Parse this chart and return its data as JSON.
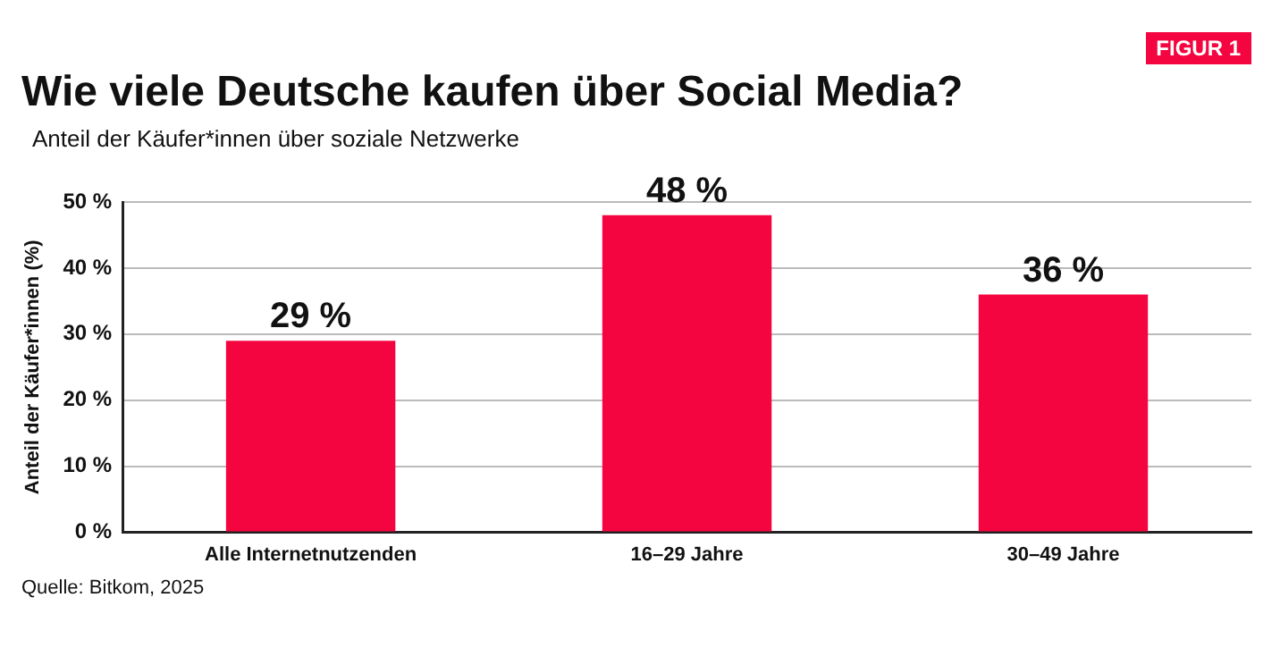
{
  "chart_data": {
    "type": "bar",
    "title": "Wie viele Deutsche kaufen über Social Media?",
    "subtitle": "Anteil der Käufer*innen über soziale Netzwerke",
    "ylabel": "Anteil der Käufer*innen (%)",
    "categories": [
      "Alle Internetnutzenden",
      "16–29 Jahre",
      "30–49 Jahre"
    ],
    "values": [
      29,
      48,
      36
    ],
    "value_labels": [
      "29 %",
      "48 %",
      "36 %"
    ],
    "color": "#f5053f",
    "ylim": [
      0,
      50
    ],
    "yticks": [
      {
        "value": 0,
        "label": "0 %"
      },
      {
        "value": 10,
        "label": "10 %"
      },
      {
        "value": 20,
        "label": "20 %"
      },
      {
        "value": 30,
        "label": "30 %"
      },
      {
        "value": 40,
        "label": "40 %"
      },
      {
        "value": 50,
        "label": "50 %"
      }
    ],
    "grid": "y",
    "legend": false,
    "annotations": [
      "FIGUR 1",
      "Quelle: Bitkom, 2025"
    ]
  }
}
